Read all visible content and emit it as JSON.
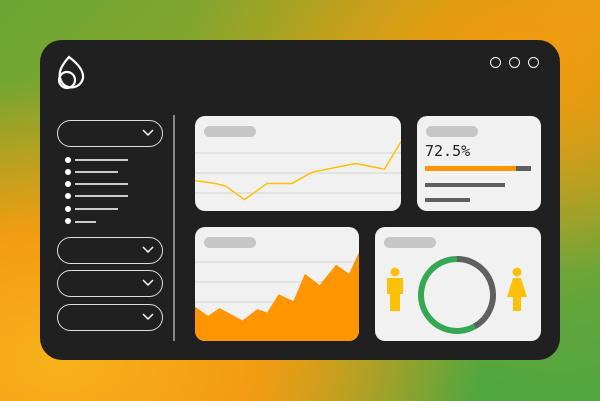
{
  "window": {
    "controls": [
      "circle",
      "circle",
      "circle"
    ]
  },
  "sidebar": {
    "logo_icon": "leaf-drop-logo",
    "dropdowns": [
      {
        "icon": "chevron-down-icon"
      },
      {
        "icon": "chevron-down-icon"
      },
      {
        "icon": "chevron-down-icon"
      },
      {
        "icon": "chevron-down-icon"
      }
    ],
    "list_items": 6
  },
  "stat_card": {
    "value": "72.5%",
    "progress": 0.86
  },
  "donut_card": {
    "left_icon": "male-person-icon",
    "right_icon": "female-person-icon"
  },
  "colors": {
    "accent_orange": "#ff9500",
    "line_yellow": "#ffc107",
    "green": "#34a853",
    "gray": "#5f5f5f",
    "panel": "#202020",
    "card": "#f1f1f1"
  },
  "chart_data": [
    {
      "type": "line",
      "x": [
        0,
        10,
        15,
        24,
        35,
        47,
        57,
        78,
        92,
        100
      ],
      "values": [
        32,
        29,
        26,
        12,
        29,
        29,
        41,
        50,
        44,
        73
      ],
      "ylim": [
        0,
        100
      ],
      "grid": true,
      "color": "#ffc107"
    },
    {
      "type": "area",
      "x": [
        0,
        8,
        15,
        29,
        38,
        44,
        51,
        60,
        67,
        76,
        86,
        94,
        100
      ],
      "values": [
        30,
        22,
        29,
        18,
        28,
        25,
        41,
        35,
        59,
        49,
        67,
        59,
        78
      ],
      "ylim": [
        0,
        100
      ],
      "grid": true,
      "color": "#ff9500"
    },
    {
      "type": "pie",
      "values": [
        58,
        42
      ],
      "colors": [
        "#34a853",
        "#5f5f5f"
      ],
      "style": "donut"
    }
  ]
}
